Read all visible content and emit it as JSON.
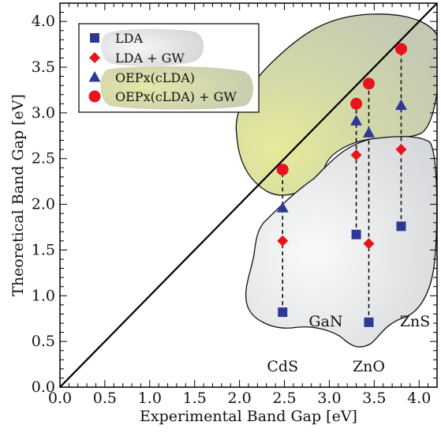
{
  "chart_data": {
    "type": "scatter",
    "xlabel": "Experimental Band Gap [eV]",
    "ylabel": "Theoretical Band Gap [eV]",
    "xlim": [
      0.0,
      4.2
    ],
    "ylim": [
      0.0,
      4.2
    ],
    "xticks": [
      "0.0",
      "0.5",
      "1.0",
      "1.5",
      "2.0",
      "2.5",
      "3.0",
      "3.5",
      "4.0"
    ],
    "yticks": [
      "0.0",
      "0.5",
      "1.0",
      "1.5",
      "2.0",
      "2.5",
      "3.0",
      "3.5",
      "4.0"
    ],
    "grid": false,
    "legend_position": "top-left",
    "reference_line": "y = x",
    "materials": [
      {
        "name": "CdS",
        "x": 2.48
      },
      {
        "name": "GaN",
        "x": 3.3
      },
      {
        "name": "ZnO",
        "x": 3.44
      },
      {
        "name": "ZnS",
        "x": 3.8
      }
    ],
    "series": [
      {
        "name": "LDA",
        "marker": "square",
        "color": "#2b3a96",
        "points": [
          {
            "x": 2.48,
            "y": 0.82
          },
          {
            "x": 3.3,
            "y": 1.67
          },
          {
            "x": 3.44,
            "y": 0.71
          },
          {
            "x": 3.8,
            "y": 1.76
          }
        ]
      },
      {
        "name": "LDA  + GW",
        "marker": "diamond",
        "color": "#e8141b",
        "points": [
          {
            "x": 2.48,
            "y": 1.6
          },
          {
            "x": 3.3,
            "y": 2.54
          },
          {
            "x": 3.44,
            "y": 1.57
          },
          {
            "x": 3.8,
            "y": 2.6
          }
        ]
      },
      {
        "name": "OEPx(cLDA)",
        "marker": "triangle",
        "color": "#2b3a96",
        "points": [
          {
            "x": 2.48,
            "y": 1.96
          },
          {
            "x": 3.3,
            "y": 2.91
          },
          {
            "x": 3.44,
            "y": 2.78
          },
          {
            "x": 3.8,
            "y": 3.08
          }
        ]
      },
      {
        "name": "OEPx(cLDA) + GW",
        "marker": "circle",
        "color": "#e8141b",
        "points": [
          {
            "x": 2.48,
            "y": 2.38
          },
          {
            "x": 3.3,
            "y": 3.1
          },
          {
            "x": 3.44,
            "y": 3.32
          },
          {
            "x": 3.8,
            "y": 3.7
          }
        ]
      }
    ],
    "colors": {
      "region_lda": "#e4e5e7",
      "region_oep": "#d2d8a8",
      "reference_line": "#000000",
      "connector": "#000000"
    }
  }
}
